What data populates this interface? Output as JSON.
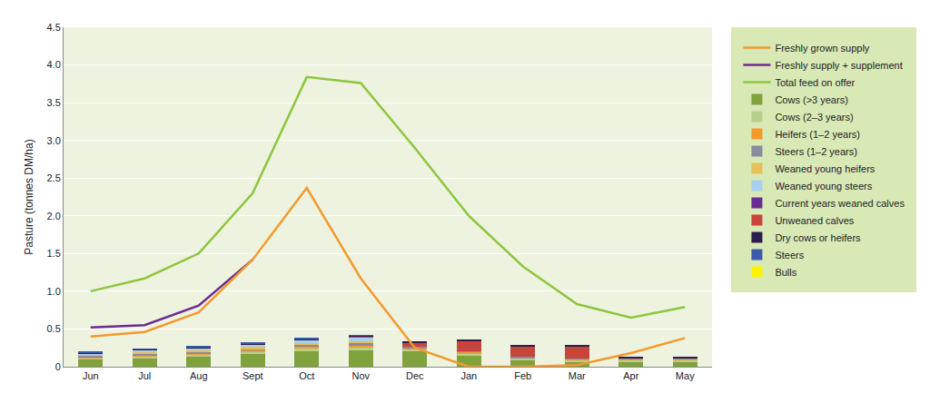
{
  "chart_data": {
    "type": "bar",
    "stacked": true,
    "grid": true,
    "legend": "right",
    "y_label": "Pasture (tonnes DM/ha)",
    "categories": [
      "Jun",
      "Jul",
      "Aug",
      "Sept",
      "Oct",
      "Nov",
      "Dec",
      "Jan",
      "Feb",
      "Mar",
      "Apr",
      "May"
    ],
    "ylim": [
      0,
      4.5
    ],
    "yticks": [
      0,
      0.5,
      {
        "value": 1,
        "label": "1.0"
      },
      1.5,
      {
        "value": 2,
        "label": "2.0"
      },
      2.5,
      {
        "value": 3,
        "label": "3.0"
      },
      3.5,
      {
        "value": 4,
        "label": "4.0"
      },
      4.5
    ],
    "series": [
      {
        "name": "Bulls",
        "color": "#fff200",
        "values": [
          0,
          0,
          0,
          0,
          0,
          0,
          0,
          0,
          0,
          0,
          0,
          0
        ]
      },
      {
        "name": "Steers",
        "color": "#3b5ba9",
        "values": [
          0.005,
          0.005,
          0.005,
          0.005,
          0.005,
          0.005,
          0,
          0,
          0,
          0,
          0,
          0
        ]
      },
      {
        "name": "Dry cows or heifers",
        "color": "#2a1f4a",
        "values": [
          0.01,
          0.01,
          0.01,
          0.01,
          0.01,
          0.01,
          0.01,
          0.01,
          0.01,
          0.01,
          0.01,
          0.01
        ]
      },
      {
        "name": "Unweaned calves",
        "color": "#c8443c",
        "values": [
          0,
          0,
          0,
          0,
          0,
          0.01,
          0.05,
          0.13,
          0.14,
          0.16,
          0,
          0
        ]
      },
      {
        "name": "Current years weaned calves",
        "color": "#6a2c91",
        "values": [
          0,
          0,
          0,
          0,
          0,
          0,
          0,
          0,
          0,
          0,
          0.01,
          0.01
        ]
      },
      {
        "name": "Weaned young steers",
        "color": "#a8d0ec",
        "values": [
          0.02,
          0.03,
          0.03,
          0.04,
          0.05,
          0.05,
          0,
          0,
          0,
          0,
          0,
          0
        ]
      },
      {
        "name": "Weaned young heifers",
        "color": "#e5c15a",
        "values": [
          0.01,
          0.02,
          0.02,
          0.02,
          0.02,
          0.03,
          0,
          0,
          0,
          0,
          0,
          0
        ]
      },
      {
        "name": "Steers (1–2 years)",
        "color": "#8c8a9e",
        "values": [
          0.02,
          0.02,
          0.02,
          0.02,
          0.02,
          0.03,
          0.02,
          0.01,
          0.01,
          0.01,
          0.01,
          0.01
        ]
      },
      {
        "name": "Heifers (1–2 years)",
        "color": "#f39a2e",
        "values": [
          0.01,
          0.01,
          0.02,
          0.02,
          0.02,
          0.02,
          0.02,
          0.02,
          0.01,
          0.01,
          0.01,
          0.01
        ]
      },
      {
        "name": "Cows (2–3 years)",
        "color": "#b8cf8c",
        "values": [
          0.02,
          0.02,
          0.02,
          0.03,
          0.04,
          0.04,
          0.03,
          0.03,
          0.02,
          0.02,
          0.02,
          0.02
        ]
      },
      {
        "name": "Cows (>3 years)",
        "color": "#7fa23c",
        "values": [
          0.1,
          0.12,
          0.14,
          0.17,
          0.21,
          0.22,
          0.2,
          0.15,
          0.09,
          0.07,
          0.07,
          0.07
        ]
      },
      {
        "name": "Total feed on offer",
        "type": "line",
        "color": "#8dc63f",
        "values": [
          1.0,
          1.17,
          1.5,
          2.3,
          3.84,
          3.76,
          2.9,
          2.0,
          1.33,
          0.83,
          0.65,
          0.79
        ]
      },
      {
        "name": "Freshly supply + supplement",
        "type": "line",
        "color": "#6a2c91",
        "values": [
          0.52,
          0.55,
          0.81,
          1.42,
          null,
          null,
          null,
          null,
          null,
          null,
          null,
          null
        ]
      },
      {
        "name": "Freshly grown supply",
        "type": "line",
        "color": "#f39a2e",
        "values": [
          0.4,
          0.46,
          0.72,
          1.42,
          2.37,
          1.17,
          0.25,
          0.0,
          0.0,
          0.02,
          0.18,
          0.38
        ]
      }
    ]
  }
}
